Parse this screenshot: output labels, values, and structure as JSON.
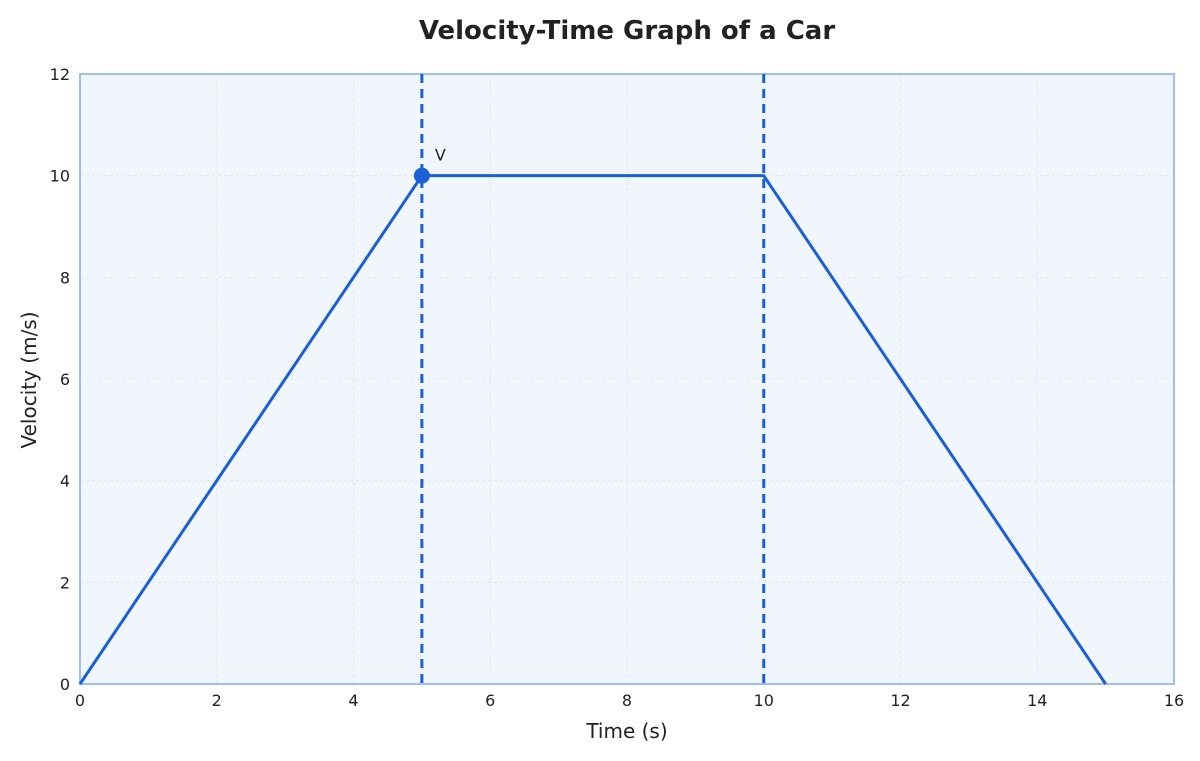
{
  "chart_data": {
    "type": "line",
    "title": "Velocity-Time Graph of a Car",
    "xlabel": "Time (s)",
    "ylabel": "Velocity (m/s)",
    "xlim": [
      0,
      16
    ],
    "ylim": [
      0,
      12
    ],
    "xticks": [
      0,
      2,
      4,
      6,
      8,
      10,
      12,
      14,
      16
    ],
    "yticks": [
      0,
      2,
      4,
      6,
      8,
      10,
      12
    ],
    "grid": true,
    "series": [
      {
        "x": [
          0,
          5,
          10,
          15
        ],
        "y": [
          0,
          10,
          10,
          0
        ]
      }
    ],
    "reference_lines": [
      {
        "x": 5
      },
      {
        "x": 10
      }
    ],
    "annotations": [
      {
        "text": "V",
        "x": 5,
        "y": 10
      }
    ],
    "colors": {
      "line": "#1a5fd6",
      "reference": "#1a5fd6",
      "plot_background": "#f1f6fd",
      "plot_border": "#9dbff1",
      "grid": "#dce7f6"
    }
  }
}
